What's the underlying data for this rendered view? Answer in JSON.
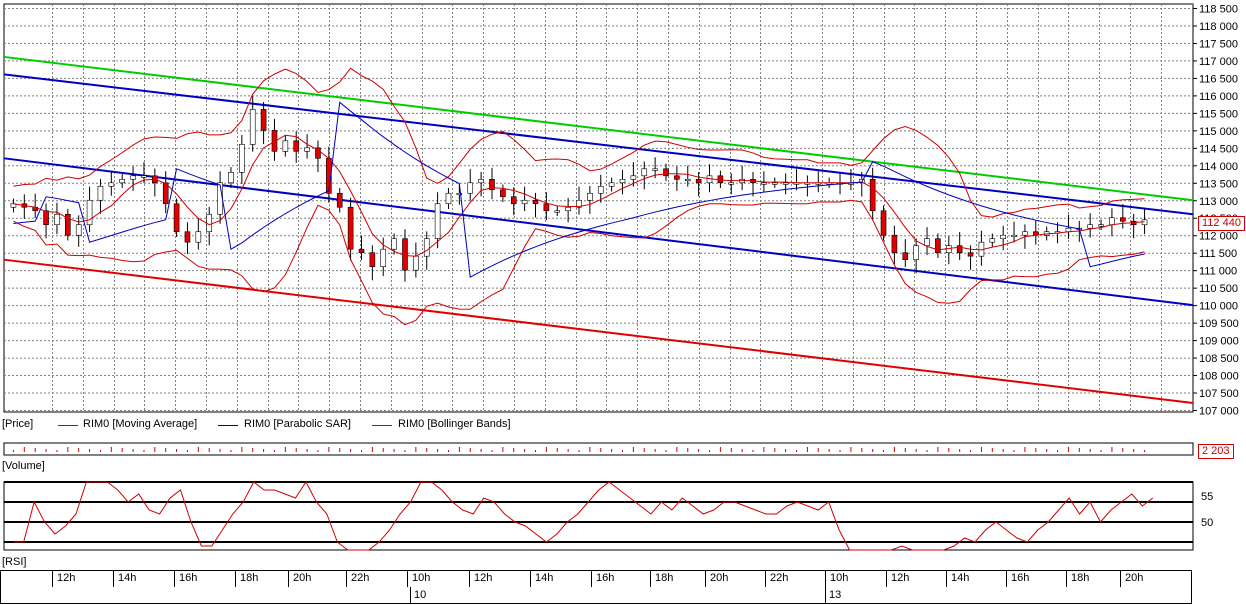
{
  "chart_data": [
    {
      "type": "candlestick",
      "title": "",
      "ylim": [
        107000,
        118600
      ],
      "y_ticks": [
        "118 500",
        "118 000",
        "117 500",
        "117 000",
        "116 500",
        "116 000",
        "115 500",
        "115 000",
        "114 500",
        "114 000",
        "113 500",
        "113 000",
        "112 500",
        "112 000",
        "111 500",
        "111 000",
        "110 500",
        "110 000",
        "109 500",
        "109 000",
        "108 500",
        "108 000",
        "107 500",
        "107 000"
      ],
      "last_price_label": "112 440",
      "bars": 192,
      "close": [
        112900,
        112800,
        112700,
        112300,
        112600,
        112000,
        112300,
        113000,
        113400,
        113500,
        113600,
        113700,
        113700,
        113500,
        112900,
        112100,
        111800,
        112100,
        112600,
        113500,
        113800,
        114600,
        115600,
        115000,
        114400,
        114700,
        114400,
        114500,
        114200,
        113200,
        112800,
        111600,
        111500,
        111100,
        111600,
        111900,
        111000,
        111400,
        111900,
        112900,
        113200,
        113200,
        113500,
        113600,
        113300,
        113100,
        112900,
        113000,
        112900,
        112700,
        112700,
        112800,
        113000,
        113200,
        113400,
        113500,
        113600,
        113700,
        113900,
        113900,
        113700,
        113600,
        113600,
        113500,
        113700,
        113500,
        113500,
        113600,
        113500,
        113500,
        113500,
        113500,
        113500,
        113500,
        113500,
        113500,
        113500,
        113500,
        113600,
        112700,
        112000,
        111500,
        111300,
        111700,
        111900,
        111500,
        111700,
        111500,
        111400,
        111800,
        111900,
        112000,
        112000,
        112100,
        112000,
        112100,
        112100,
        112200,
        112200,
        112300,
        112300,
        112500,
        112400,
        112300,
        112440
      ],
      "series": [
        {
          "name": "RIM0 [Moving Average]",
          "color": "#d00000"
        },
        {
          "name": "RIM0 [Parabolic SAR]",
          "color": "#0000c0"
        },
        {
          "name": "RIM0 [Bollinger Bands]",
          "color": "#d00000"
        }
      ],
      "trendlines": [
        {
          "color": "#00cc00",
          "from": 117100,
          "to": 113000
        },
        {
          "color": "#0000c0",
          "from": 116600,
          "to": 112600
        },
        {
          "color": "#0000c0",
          "from": 114200,
          "to": 110000
        },
        {
          "color": "#e00000",
          "from": 111300,
          "to": 107200
        }
      ]
    },
    {
      "type": "bar",
      "title": "",
      "value_label": "2 203"
    },
    {
      "type": "line",
      "title": "",
      "y_ticks": [
        "55",
        "50"
      ],
      "rsi": [
        45,
        45,
        55,
        50,
        47,
        49,
        52,
        60,
        60,
        62,
        58,
        55,
        57,
        53,
        52,
        56,
        58,
        50,
        44,
        44,
        48,
        52,
        55,
        62,
        58,
        58,
        57,
        56,
        60,
        55,
        52,
        45,
        40,
        38,
        42,
        45,
        48,
        52,
        55,
        60,
        60,
        58,
        55,
        53,
        52,
        56,
        55,
        52,
        50,
        49,
        47,
        45,
        47,
        50,
        52,
        55,
        58,
        60,
        58,
        56,
        54,
        52,
        55,
        53,
        56,
        54,
        52,
        53,
        55,
        55,
        54,
        53,
        52,
        52,
        54,
        55,
        54,
        53,
        55,
        48,
        42,
        40,
        38,
        40,
        42,
        44,
        43,
        42,
        40,
        42,
        44,
        46,
        45,
        48,
        50,
        48,
        46,
        45,
        48,
        50,
        53,
        56,
        52,
        55,
        50,
        53,
        55,
        57,
        54,
        56
      ]
    }
  ],
  "legend": {
    "price": "[Price]",
    "ma": "RIM0 [Moving Average]",
    "sar": "RIM0 [Parabolic SAR]",
    "bb": "RIM0 [Bollinger Bands]"
  },
  "pane_labels": {
    "volume": "[Volume]",
    "rsi": "[RSI]"
  },
  "time_axis": {
    "hours": [
      "12h",
      "14h",
      "16h",
      "18h",
      "20h",
      "22h",
      "10h",
      "12h",
      "14h",
      "16h",
      "18h",
      "20h",
      "22h",
      "10h",
      "12h",
      "14h",
      "16h",
      "18h",
      "20h"
    ],
    "dates": [
      "10",
      "13"
    ]
  },
  "colors": {
    "up": "#ffffff",
    "down": "#e00000",
    "grid": "#808080"
  }
}
